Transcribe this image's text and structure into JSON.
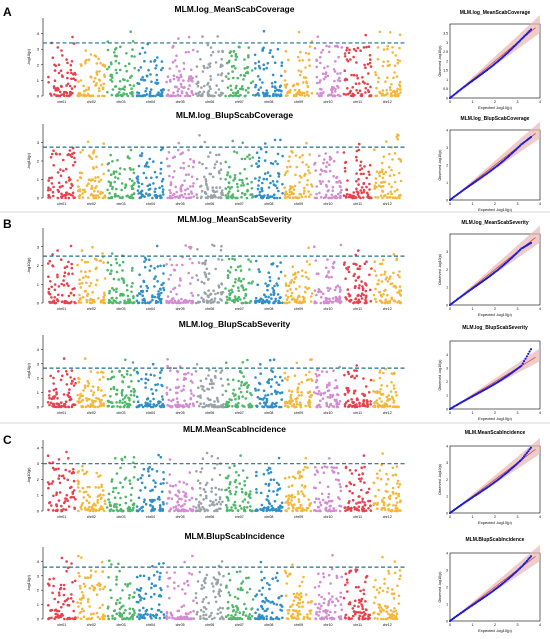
{
  "panel_letters": [
    "A",
    "B",
    "C"
  ],
  "chromosomes": [
    "chr01",
    "chr02",
    "chr03",
    "chr04",
    "chr05",
    "chr06",
    "chr07",
    "chr08",
    "chr09",
    "chr10",
    "chr11",
    "chr12"
  ],
  "chrom_colors": [
    "#e8414d",
    "#f5b73b",
    "#4fb86a",
    "#2e8fc9",
    "#d58bd1",
    "#9aa3a8",
    "#4fb86a",
    "#2e8fc9",
    "#f5b73b",
    "#d58bd1",
    "#e8414d",
    "#f5b73b"
  ],
  "threshold_color": "#1f6f8b",
  "qq_point_color": "#1a1adf",
  "chart_data": [
    {
      "type": "scatter",
      "kind": "manhattan",
      "title": "MLM.log_MeanScabCoverage",
      "ylabel": "-log10(p)",
      "ylim": [
        0,
        5
      ],
      "yticks": [
        0,
        1,
        2,
        3,
        4
      ],
      "threshold": 3.4
    },
    {
      "type": "scatter",
      "kind": "qq",
      "title": "MLM.log_MeanScabCoverage",
      "xlabel": "Expected -log10(p)",
      "ylabel": "Observed -log10(p)",
      "xlim": [
        0,
        4
      ],
      "ylim": [
        0,
        4
      ],
      "xticks": [
        0,
        1,
        2,
        3,
        4
      ],
      "yticks": [
        0,
        0.5,
        1,
        1.5,
        2,
        2.5,
        3,
        3.5
      ],
      "obs_max": 3.7
    },
    {
      "type": "scatter",
      "kind": "manhattan",
      "title": "MLM.log_BlupScabCoverage",
      "ylabel": "-log10(p)",
      "ylim": [
        0,
        4
      ],
      "yticks": [
        0,
        1,
        2,
        3
      ],
      "threshold": 2.75
    },
    {
      "type": "scatter",
      "kind": "qq",
      "title": "MLM.log_BlupScabCoverage",
      "xlabel": "Expected -log10(p)",
      "ylabel": "Observed -log10(p)",
      "xlim": [
        0,
        4
      ],
      "ylim": [
        0,
        4
      ],
      "xticks": [
        0,
        1,
        2,
        3,
        4
      ],
      "yticks": [
        0,
        1,
        2,
        3,
        4
      ],
      "obs_max": 3.6
    },
    {
      "type": "scatter",
      "kind": "manhattan",
      "title": "MLM.log_MeanScabSeverity",
      "ylabel": "-log10(p)",
      "ylim": [
        0,
        4
      ],
      "yticks": [
        0,
        1,
        2,
        3
      ],
      "threshold": 2.5
    },
    {
      "type": "scatter",
      "kind": "qq",
      "title": "MLM.log_MeanScabSeverity",
      "xlabel": "Expected -log10(p)",
      "ylabel": "Observed -log10(p)",
      "xlim": [
        0,
        4
      ],
      "ylim": [
        0,
        4
      ],
      "xticks": [
        0,
        1,
        2,
        3,
        4
      ],
      "yticks": [
        0,
        1,
        2,
        3
      ],
      "obs_max": 3.5
    },
    {
      "type": "scatter",
      "kind": "manhattan",
      "title": "MLM.log_BlupScabSeverity",
      "ylabel": "-log10(p)",
      "ylim": [
        0,
        5
      ],
      "yticks": [
        0,
        1,
        2,
        3,
        4
      ],
      "threshold": 2.7
    },
    {
      "type": "scatter",
      "kind": "qq",
      "title": "MLM.log_BlupScabSeverity",
      "xlabel": "Expected -log10(p)",
      "ylabel": "Observed -log10(p)",
      "xlim": [
        0,
        4
      ],
      "ylim": [
        0,
        5
      ],
      "xticks": [
        0,
        1,
        2,
        3,
        4
      ],
      "yticks": [
        0,
        1,
        2,
        3,
        4
      ],
      "obs_max": 4.4
    },
    {
      "type": "scatter",
      "kind": "manhattan",
      "title": "MLM.MeanScabIncidence",
      "ylabel": "-log10(p)",
      "ylim": [
        0,
        4.5
      ],
      "yticks": [
        0,
        1,
        2,
        3,
        4
      ],
      "threshold": 3.0
    },
    {
      "type": "scatter",
      "kind": "qq",
      "title": "MLM.MeanScabIncidence",
      "xlabel": "Expected -log10(p)",
      "ylabel": "Observed -log10(p)",
      "xlim": [
        0,
        4
      ],
      "ylim": [
        0,
        4
      ],
      "xticks": [
        0,
        1,
        2,
        3,
        4
      ],
      "yticks": [
        0,
        1,
        2,
        3,
        4
      ],
      "obs_max": 3.9
    },
    {
      "type": "scatter",
      "kind": "manhattan",
      "title": "MLM.BlupScabIncidence",
      "ylabel": "-log10(p)",
      "ylim": [
        0,
        5
      ],
      "yticks": [
        0,
        1,
        2,
        3,
        4
      ],
      "threshold": 3.6
    },
    {
      "type": "scatter",
      "kind": "qq",
      "title": "MLM.BlupScabIncidence",
      "xlabel": "Expected -log10(p)",
      "ylabel": "Observed -log10(p)",
      "xlim": [
        0,
        4
      ],
      "ylim": [
        0,
        4
      ],
      "xticks": [
        0,
        1,
        2,
        3,
        4
      ],
      "yticks": [
        0,
        1,
        2,
        3,
        4
      ],
      "obs_max": 3.8
    }
  ]
}
